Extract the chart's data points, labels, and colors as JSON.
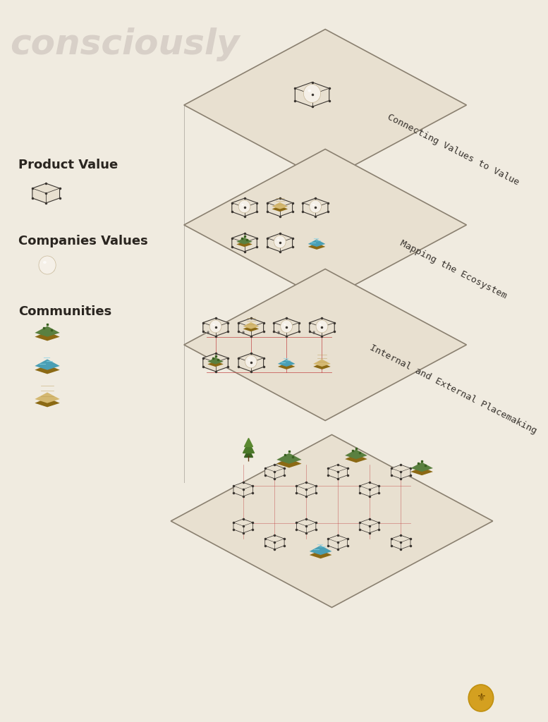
{
  "bg_color": "#f0ebe0",
  "panel_color": "#e8e0d0",
  "panel_edge_color": "#8a8070",
  "hex_fill": "#e8e0d0",
  "hex_edge": "#3a3530",
  "sphere_color": "#f5f0e8",
  "title_text": "consciously",
  "title_color": "#d8d0c8",
  "title_fontsize": 36,
  "legend_title_color": "#2a2520",
  "legend_title_fontsize": 13,
  "label1": "Product Value",
  "label2": "Companies Values",
  "label3": "Communities",
  "layer_labels": [
    "Connecting Values to Value",
    "Mapping the Ecosystem",
    "Internal and External Placemaking"
  ],
  "layer_label_color": "#3a3530",
  "red_line_color": "#c04040",
  "connect_line_color": "#6a6560",
  "grass_green": "#5a8040",
  "grass_dark": "#3a6020",
  "water_blue": "#4a9fb5",
  "water_light": "#8ad4e8",
  "sand_color": "#d4b870",
  "soil_color": "#8B6914",
  "logo_color": "#d4a020",
  "logo_inner": "#c09010"
}
